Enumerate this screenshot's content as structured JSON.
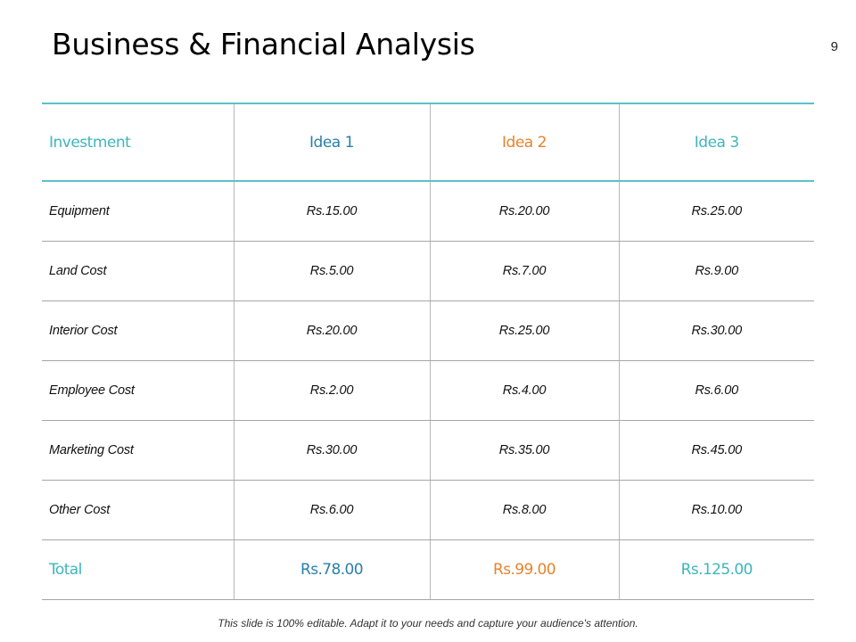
{
  "slide": {
    "title": "Business & Financial Analysis",
    "page_number": "9",
    "footer_note": "This slide is 100% editable. Adapt it to your needs and capture your audience's attention."
  },
  "table": {
    "headers": [
      "Investment",
      "Idea 1",
      "Idea 2",
      "Idea 3"
    ],
    "rows": [
      {
        "label": "Equipment",
        "values": [
          "Rs.15.00",
          "Rs.20.00",
          "Rs.25.00"
        ]
      },
      {
        "label": "Land Cost",
        "values": [
          "Rs.5.00",
          "Rs.7.00",
          "Rs.9.00"
        ]
      },
      {
        "label": "Interior Cost",
        "values": [
          "Rs.20.00",
          "Rs.25.00",
          "Rs.30.00"
        ]
      },
      {
        "label": "Employee Cost",
        "values": [
          "Rs.2.00",
          "Rs.4.00",
          "Rs.6.00"
        ]
      },
      {
        "label": "Marketing Cost",
        "values": [
          "Rs.30.00",
          "Rs.35.00",
          "Rs.45.00"
        ]
      },
      {
        "label": "Other Cost",
        "values": [
          "Rs.6.00",
          "Rs.8.00",
          "Rs.10.00"
        ]
      }
    ],
    "total": {
      "label": "Total",
      "values": [
        "Rs.78.00",
        "Rs.99.00",
        "Rs.125.00"
      ]
    }
  },
  "colors": {
    "teal": "#3db6bd",
    "blue": "#2b7fa8",
    "orange": "#e8822d",
    "header_rule": "#5bc2c8"
  }
}
